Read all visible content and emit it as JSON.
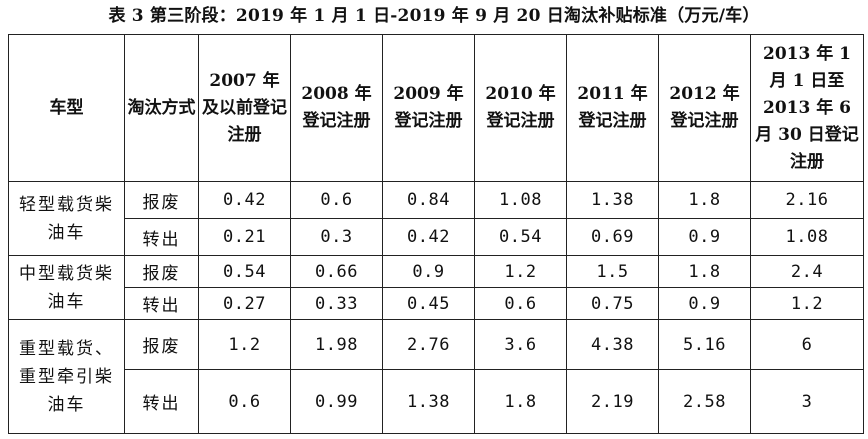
{
  "caption": "表 3  第三阶段：2019 年 1 月 1 日-2019 年 9 月 20 日淘汰补贴标准（万元/车）",
  "headers": [
    "车型",
    "淘汰方式",
    "2007 年及以前登记注册",
    "2008 年登记注册",
    "2009 年登记注册",
    "2010 年登记注册",
    "2011 年登记注册",
    "2012 年登记注册",
    "2013 年 1 月 1 日至 2013 年 6 月 30 日登记注册"
  ],
  "groups": [
    {
      "vehicle_type": "轻型载货柴油车",
      "rows": [
        {
          "method": "报废",
          "values": [
            "0.42",
            "0.6",
            "0.84",
            "1.08",
            "1.38",
            "1.8",
            "2.16"
          ]
        },
        {
          "method": "转出",
          "values": [
            "0.21",
            "0.3",
            "0.42",
            "0.54",
            "0.69",
            "0.9",
            "1.08"
          ]
        }
      ]
    },
    {
      "vehicle_type": "中型载货柴油车",
      "rows": [
        {
          "method": "报废",
          "values": [
            "0.54",
            "0.66",
            "0.9",
            "1.2",
            "1.5",
            "1.8",
            "2.4"
          ]
        },
        {
          "method": "转出",
          "values": [
            "0.27",
            "0.33",
            "0.45",
            "0.6",
            "0.75",
            "0.9",
            "1.2"
          ]
        }
      ]
    },
    {
      "vehicle_type": "重型载货、重型牵引柴油车",
      "rows": [
        {
          "method": "报废",
          "values": [
            "1.2",
            "1.98",
            "2.76",
            "3.6",
            "4.38",
            "5.16",
            "6"
          ]
        },
        {
          "method": "转出",
          "values": [
            "0.6",
            "0.99",
            "1.38",
            "1.8",
            "2.19",
            "2.58",
            "3"
          ]
        }
      ]
    }
  ]
}
